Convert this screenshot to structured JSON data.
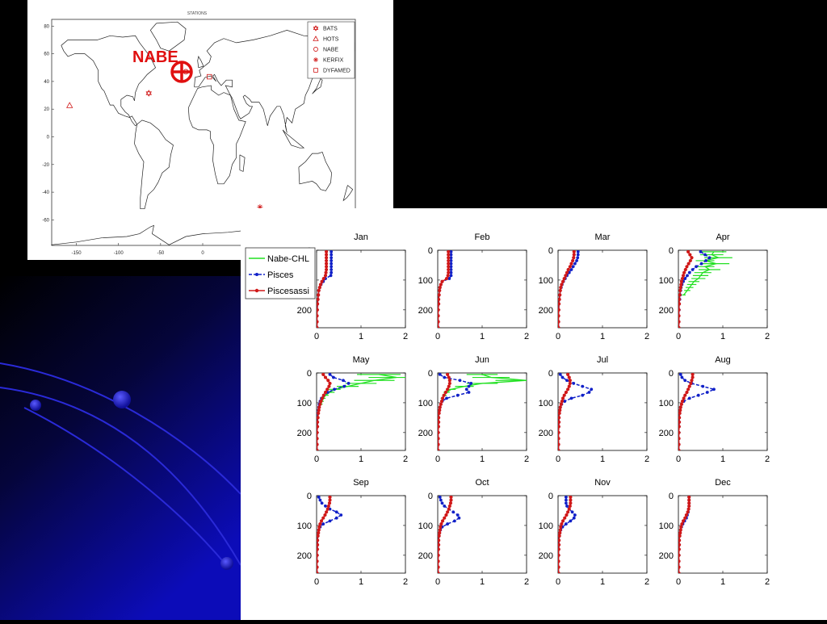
{
  "map": {
    "title": "STATIONS",
    "overlay_label": "NABE",
    "yticks": [
      "80",
      "60",
      "40",
      "20",
      "0",
      "-20",
      "-40",
      "-60"
    ],
    "xticks": [
      "-150",
      "-100",
      "-50",
      "0"
    ],
    "legend": [
      {
        "label": "BATS",
        "icon": "star-of-david-icon"
      },
      {
        "label": "HOTS",
        "icon": "triangle-icon"
      },
      {
        "label": "NABE",
        "icon": "circle-icon"
      },
      {
        "label": "KERFIX",
        "icon": "asterisk-icon"
      },
      {
        "label": "DYFAMED",
        "icon": "square-icon"
      }
    ],
    "stations": [
      {
        "name": "BATS",
        "lon": -64,
        "lat": 31.5
      },
      {
        "name": "HOTS",
        "lon": -158,
        "lat": 22.7
      },
      {
        "name": "NABE",
        "lon": -20,
        "lat": 47
      },
      {
        "name": "KERFIX",
        "lon": 68,
        "lat": -50.7
      },
      {
        "name": "DYFAMED",
        "lon": 7.9,
        "lat": 43.4
      }
    ],
    "marker_color": "#d01818"
  },
  "chart_data": {
    "type": "line",
    "legend": [
      "Nabe-CHL",
      "Pisces",
      "Piscesassi"
    ],
    "colors": {
      "Nabe-CHL": "#22e022",
      "Pisces": "#1020c8",
      "Piscesassi": "#d01818"
    },
    "xlim": [
      0,
      2
    ],
    "ylim": [
      0,
      260
    ],
    "y_reversed": true,
    "xticks": [
      "0",
      "1",
      "2"
    ],
    "yticks": [
      "0",
      "100",
      "200"
    ],
    "depths": [
      5,
      15,
      25,
      35,
      45,
      55,
      65,
      75,
      85,
      95,
      105,
      115,
      125,
      135,
      150,
      165,
      180,
      200,
      220,
      240,
      260
    ],
    "panels": [
      {
        "month": "Jan",
        "pisces": [
          0.33,
          0.33,
          0.33,
          0.33,
          0.33,
          0.33,
          0.33,
          0.33,
          0.32,
          0.2,
          0.15,
          0.1,
          0.07,
          0.05,
          0.04,
          0.03,
          0.02,
          0.015,
          0.01,
          0.01,
          0.01
        ],
        "piscesassi": [
          0.22,
          0.22,
          0.22,
          0.22,
          0.22,
          0.22,
          0.22,
          0.21,
          0.2,
          0.16,
          0.12,
          0.09,
          0.07,
          0.05,
          0.04,
          0.03,
          0.02,
          0.015,
          0.01,
          0.01,
          0.01
        ],
        "nabe": []
      },
      {
        "month": "Feb",
        "pisces": [
          0.3,
          0.3,
          0.3,
          0.3,
          0.3,
          0.3,
          0.3,
          0.3,
          0.3,
          0.26,
          0.1,
          0.07,
          0.05,
          0.04,
          0.03,
          0.02,
          0.02,
          0.01,
          0.01,
          0.01,
          0.01
        ],
        "piscesassi": [
          0.24,
          0.24,
          0.24,
          0.24,
          0.24,
          0.24,
          0.24,
          0.24,
          0.23,
          0.2,
          0.1,
          0.07,
          0.05,
          0.04,
          0.03,
          0.02,
          0.02,
          0.01,
          0.01,
          0.01,
          0.01
        ],
        "nabe": []
      },
      {
        "month": "Mar",
        "pisces": [
          0.45,
          0.45,
          0.44,
          0.42,
          0.38,
          0.34,
          0.3,
          0.25,
          0.2,
          0.16,
          0.12,
          0.09,
          0.07,
          0.05,
          0.04,
          0.03,
          0.02,
          0.015,
          0.01,
          0.01,
          0.01
        ],
        "piscesassi": [
          0.36,
          0.36,
          0.35,
          0.33,
          0.3,
          0.27,
          0.23,
          0.2,
          0.17,
          0.14,
          0.11,
          0.08,
          0.06,
          0.05,
          0.04,
          0.03,
          0.02,
          0.015,
          0.01,
          0.01,
          0.01
        ],
        "nabe": []
      },
      {
        "month": "Apr",
        "pisces": [
          0.5,
          0.6,
          0.7,
          0.62,
          0.52,
          0.4,
          0.32,
          0.25,
          0.2,
          0.15,
          0.11,
          0.08,
          0.06,
          0.05,
          0.04,
          0.03,
          0.02,
          0.015,
          0.01,
          0.01,
          0.01
        ],
        "piscesassi": [
          0.22,
          0.26,
          0.3,
          0.27,
          0.23,
          0.19,
          0.16,
          0.13,
          0.11,
          0.09,
          0.07,
          0.06,
          0.05,
          0.04,
          0.03,
          0.02,
          0.02,
          0.01,
          0.01,
          0.01,
          0.01
        ],
        "nabe": [
          0.8,
          0.75,
          0.9,
          0.6,
          0.85,
          0.6,
          0.7,
          0.55,
          0.5,
          0.45,
          0.35,
          0.3,
          0.25,
          0.2,
          0.12
        ]
      },
      {
        "month": "May",
        "pisces": [
          0.3,
          0.38,
          0.6,
          0.72,
          0.62,
          0.4,
          0.25,
          0.16,
          0.11,
          0.08,
          0.06,
          0.05,
          0.04,
          0.03,
          0.02,
          0.02,
          0.015,
          0.01,
          0.01,
          0.01,
          0.01
        ],
        "piscesassi": [
          0.15,
          0.2,
          0.26,
          0.3,
          0.28,
          0.24,
          0.2,
          0.16,
          0.13,
          0.1,
          0.08,
          0.06,
          0.05,
          0.04,
          0.03,
          0.02,
          0.02,
          0.01,
          0.01,
          0.01,
          0.01
        ],
        "nabe": [
          1.4,
          1.8,
          1.3,
          1.0,
          0.7,
          0.4,
          0.3,
          0.2,
          0.15,
          0.12,
          0.1
        ]
      },
      {
        "month": "Jun",
        "pisces": [
          0.05,
          0.15,
          0.5,
          0.75,
          0.7,
          0.65,
          0.7,
          0.45,
          0.2,
          0.1,
          0.07,
          0.05,
          0.04,
          0.03,
          0.02,
          0.02,
          0.015,
          0.01,
          0.01,
          0.01,
          0.01
        ],
        "piscesassi": [
          0.22,
          0.25,
          0.27,
          0.27,
          0.25,
          0.22,
          0.18,
          0.14,
          0.11,
          0.09,
          0.07,
          0.05,
          0.04,
          0.03,
          0.02,
          0.02,
          0.015,
          0.01,
          0.01,
          0.01,
          0.01
        ],
        "nabe": [
          1.0,
          1.2,
          2.0,
          1.0,
          0.6,
          0.3,
          0.2,
          0.15,
          0.1
        ]
      },
      {
        "month": "Jul",
        "pisces": [
          0.05,
          0.1,
          0.2,
          0.35,
          0.55,
          0.75,
          0.7,
          0.55,
          0.3,
          0.15,
          0.08,
          0.05,
          0.04,
          0.03,
          0.02,
          0.02,
          0.015,
          0.01,
          0.01,
          0.01,
          0.01
        ],
        "piscesassi": [
          0.22,
          0.25,
          0.27,
          0.27,
          0.25,
          0.22,
          0.18,
          0.14,
          0.11,
          0.09,
          0.07,
          0.05,
          0.04,
          0.03,
          0.02,
          0.02,
          0.015,
          0.01,
          0.01,
          0.01,
          0.01
        ],
        "nabe": []
      },
      {
        "month": "Aug",
        "pisces": [
          0.05,
          0.08,
          0.15,
          0.3,
          0.55,
          0.8,
          0.65,
          0.45,
          0.25,
          0.12,
          0.07,
          0.05,
          0.04,
          0.03,
          0.02,
          0.02,
          0.015,
          0.01,
          0.01,
          0.01,
          0.01
        ],
        "piscesassi": [
          0.32,
          0.32,
          0.3,
          0.28,
          0.25,
          0.22,
          0.19,
          0.15,
          0.12,
          0.09,
          0.07,
          0.05,
          0.04,
          0.03,
          0.02,
          0.02,
          0.015,
          0.01,
          0.01,
          0.01,
          0.01
        ],
        "nabe": []
      },
      {
        "month": "Sep",
        "pisces": [
          0.05,
          0.08,
          0.12,
          0.2,
          0.3,
          0.45,
          0.55,
          0.45,
          0.3,
          0.15,
          0.08,
          0.05,
          0.04,
          0.03,
          0.02,
          0.02,
          0.015,
          0.01,
          0.01,
          0.01,
          0.01
        ],
        "piscesassi": [
          0.3,
          0.3,
          0.29,
          0.27,
          0.25,
          0.22,
          0.19,
          0.15,
          0.11,
          0.08,
          0.06,
          0.05,
          0.04,
          0.03,
          0.02,
          0.02,
          0.015,
          0.01,
          0.01,
          0.01,
          0.01
        ],
        "nabe": []
      },
      {
        "month": "Oct",
        "pisces": [
          0.05,
          0.07,
          0.1,
          0.15,
          0.25,
          0.35,
          0.45,
          0.48,
          0.38,
          0.22,
          0.1,
          0.06,
          0.04,
          0.03,
          0.02,
          0.02,
          0.015,
          0.01,
          0.01,
          0.01,
          0.01
        ],
        "piscesassi": [
          0.3,
          0.3,
          0.29,
          0.27,
          0.25,
          0.22,
          0.19,
          0.15,
          0.11,
          0.08,
          0.06,
          0.05,
          0.04,
          0.03,
          0.02,
          0.02,
          0.015,
          0.01,
          0.01,
          0.01,
          0.01
        ],
        "nabe": []
      },
      {
        "month": "Nov",
        "pisces": [
          0.18,
          0.18,
          0.18,
          0.2,
          0.25,
          0.32,
          0.38,
          0.36,
          0.28,
          0.18,
          0.1,
          0.06,
          0.04,
          0.03,
          0.02,
          0.02,
          0.015,
          0.01,
          0.01,
          0.01,
          0.01
        ],
        "piscesassi": [
          0.28,
          0.28,
          0.28,
          0.27,
          0.25,
          0.22,
          0.19,
          0.15,
          0.11,
          0.08,
          0.06,
          0.05,
          0.04,
          0.03,
          0.02,
          0.02,
          0.015,
          0.01,
          0.01,
          0.01,
          0.01
        ],
        "nabe": []
      },
      {
        "month": "Dec",
        "pisces": [
          0.24,
          0.24,
          0.24,
          0.24,
          0.23,
          0.22,
          0.2,
          0.18,
          0.14,
          0.1,
          0.07,
          0.05,
          0.04,
          0.03,
          0.02,
          0.02,
          0.015,
          0.01,
          0.01,
          0.01,
          0.01
        ],
        "piscesassi": [
          0.24,
          0.24,
          0.24,
          0.24,
          0.23,
          0.21,
          0.18,
          0.15,
          0.11,
          0.08,
          0.06,
          0.05,
          0.04,
          0.03,
          0.02,
          0.02,
          0.015,
          0.01,
          0.01,
          0.01,
          0.01
        ],
        "nabe": []
      }
    ]
  }
}
